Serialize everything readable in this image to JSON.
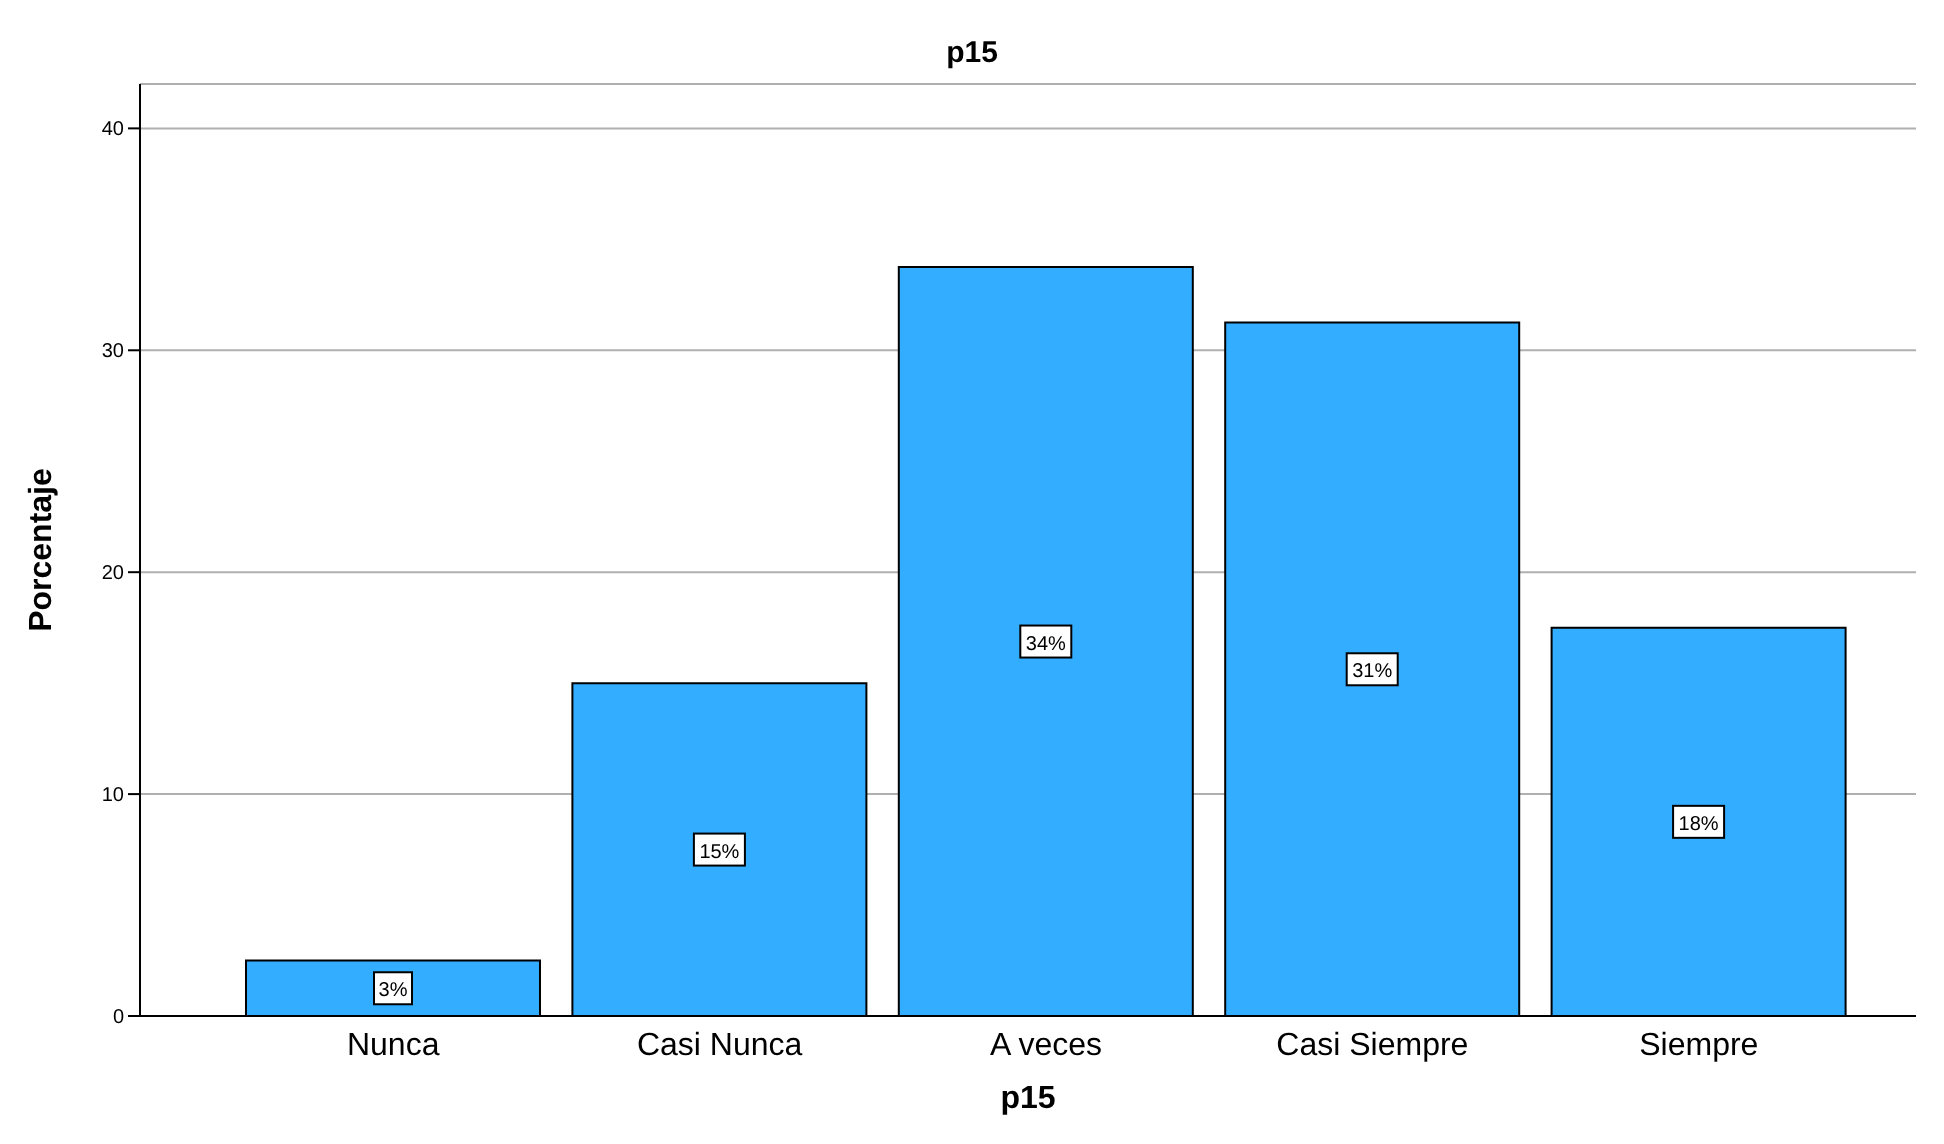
{
  "chart_data": {
    "type": "bar",
    "title": "p15",
    "xlabel": "p15",
    "ylabel": "Porcentaje",
    "categories": [
      "Nunca",
      "Casi Nunca",
      "A veces",
      "Casi Siempre",
      "Siempre"
    ],
    "values": [
      2.5,
      15,
      33.75,
      31.25,
      17.5
    ],
    "value_labels": [
      "3%",
      "15%",
      "34%",
      "31%",
      "18%"
    ],
    "color": "#33adff",
    "ylim": [
      0,
      42
    ],
    "yticks": [
      0,
      10,
      20,
      30,
      40
    ],
    "grid": "y"
  }
}
